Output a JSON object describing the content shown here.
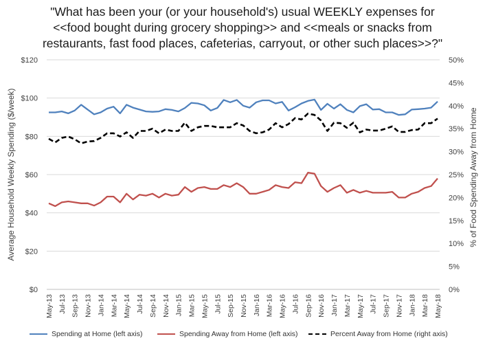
{
  "chart_data": {
    "type": "line",
    "title_lines": [
      "\"What has been your (or your household's) usual WEEKLY expenses for",
      "<<food bought during grocery shopping>> and <<meals or snacks from",
      "restaurants, fast food places, cafeterias, carryout, or other such places>>?\""
    ],
    "ylabel_left": "Average Household Weekly Spending ($/week)",
    "ylabel_right": "% of Food Spending Away from Home",
    "ylim_left": [
      0,
      120
    ],
    "yticks_left": [
      "$0",
      "$20",
      "$40",
      "$60",
      "$80",
      "$100",
      "$120"
    ],
    "ylim_right": [
      0,
      50
    ],
    "yticks_right": [
      "0%",
      "5%",
      "10%",
      "15%",
      "20%",
      "25%",
      "30%",
      "35%",
      "40%",
      "45%",
      "50%"
    ],
    "x": [
      "May-13",
      "Jun-13",
      "Jul-13",
      "Aug-13",
      "Sep-13",
      "Oct-13",
      "Nov-13",
      "Dec-13",
      "Jan-14",
      "Feb-14",
      "Mar-14",
      "Apr-14",
      "May-14",
      "Jun-14",
      "Jul-14",
      "Aug-14",
      "Sep-14",
      "Oct-14",
      "Nov-14",
      "Dec-14",
      "Jan-15",
      "Feb-15",
      "Mar-15",
      "Apr-15",
      "May-15",
      "Jun-15",
      "Jul-15",
      "Aug-15",
      "Sep-15",
      "Oct-15",
      "Nov-15",
      "Dec-15",
      "Jan-16",
      "Feb-16",
      "Mar-16",
      "Apr-16",
      "May-16",
      "Jun-16",
      "Jul-16",
      "Aug-16",
      "Sep-16",
      "Oct-16",
      "Nov-16",
      "Dec-16",
      "Jan-17",
      "Feb-17",
      "Mar-17",
      "Apr-17",
      "May-17",
      "Jun-17",
      "Jul-17",
      "Aug-17",
      "Sep-17",
      "Oct-17",
      "Nov-17",
      "Dec-17",
      "Jan-18",
      "Feb-18",
      "Mar-18",
      "Apr-18",
      "May-18"
    ],
    "xtick_labels": [
      "May-13",
      "Jul-13",
      "Sep-13",
      "Nov-13",
      "Jan-14",
      "Mar-14",
      "May-14",
      "Jul-14",
      "Sep-14",
      "Nov-14",
      "Jan-15",
      "Mar-15",
      "May-15",
      "Jul-15",
      "Sep-15",
      "Nov-15",
      "Jan-16",
      "Mar-16",
      "May-16",
      "Jul-16",
      "Sep-16",
      "Nov-16",
      "Jan-17",
      "Mar-17",
      "May-17",
      "Jul-17",
      "Sep-17",
      "Nov-17",
      "Jan-18",
      "Mar-18",
      "May-18"
    ],
    "series": [
      {
        "name": "Spending at Home (left axis)",
        "axis": "left",
        "color": "#4F81BD",
        "dash": "solid",
        "values": [
          92.5,
          92.5,
          93.0,
          92.0,
          93.5,
          96.5,
          94.0,
          91.5,
          92.5,
          94.5,
          95.5,
          92.0,
          96.5,
          95.0,
          94.0,
          93.0,
          92.8,
          93.0,
          94.2,
          93.8,
          93.0,
          94.8,
          97.5,
          97.2,
          96.2,
          93.5,
          94.8,
          99.0,
          97.8,
          99.0,
          96.0,
          95.0,
          97.8,
          98.8,
          98.8,
          97.2,
          98.0,
          93.5,
          95.2,
          97.2,
          98.5,
          99.2,
          93.8,
          97.0,
          94.5,
          96.8,
          93.8,
          92.5,
          95.8,
          96.8,
          94.0,
          94.2,
          92.5,
          92.5,
          91.2,
          91.5,
          94.0,
          94.2,
          94.5,
          95.0,
          98.2
        ]
      },
      {
        "name": "Spending Away from Home (left axis)",
        "axis": "left",
        "color": "#C0504D",
        "dash": "solid",
        "values": [
          45.0,
          43.5,
          45.5,
          46.0,
          45.5,
          45.0,
          45.0,
          43.8,
          45.5,
          48.5,
          48.5,
          45.5,
          50.0,
          47.0,
          49.5,
          49.0,
          50.0,
          48.0,
          50.0,
          49.0,
          49.5,
          53.5,
          51.0,
          53.0,
          53.5,
          52.5,
          52.5,
          54.5,
          53.5,
          55.5,
          53.5,
          50.0,
          50.0,
          51.0,
          52.0,
          54.5,
          53.5,
          53.0,
          56.0,
          55.5,
          61.0,
          60.5,
          54.0,
          51.0,
          53.0,
          54.5,
          50.5,
          52.0,
          50.5,
          51.5,
          50.5,
          50.5,
          50.5,
          51.0,
          48.0,
          48.0,
          50.0,
          51.0,
          53.0,
          54.0,
          58.0
        ]
      },
      {
        "name": "Percent Away from Home (right axis)",
        "axis": "right",
        "color": "#000000",
        "dash": "dashed",
        "values": [
          32.8,
          32.0,
          33.0,
          33.3,
          32.7,
          31.8,
          32.2,
          32.3,
          33.0,
          34.0,
          34.0,
          33.3,
          34.2,
          33.0,
          34.5,
          34.5,
          35.0,
          34.0,
          34.8,
          34.5,
          34.5,
          36.3,
          34.5,
          35.3,
          35.6,
          35.6,
          35.3,
          35.3,
          35.3,
          36.2,
          35.7,
          34.5,
          34.0,
          34.2,
          34.8,
          36.2,
          35.3,
          36.0,
          37.3,
          37.0,
          38.3,
          38.0,
          36.8,
          34.5,
          36.3,
          36.2,
          35.2,
          36.3,
          34.2,
          34.8,
          34.6,
          34.6,
          35.0,
          35.5,
          34.3,
          34.3,
          34.7,
          34.8,
          36.2,
          36.2,
          37.2
        ]
      }
    ]
  }
}
